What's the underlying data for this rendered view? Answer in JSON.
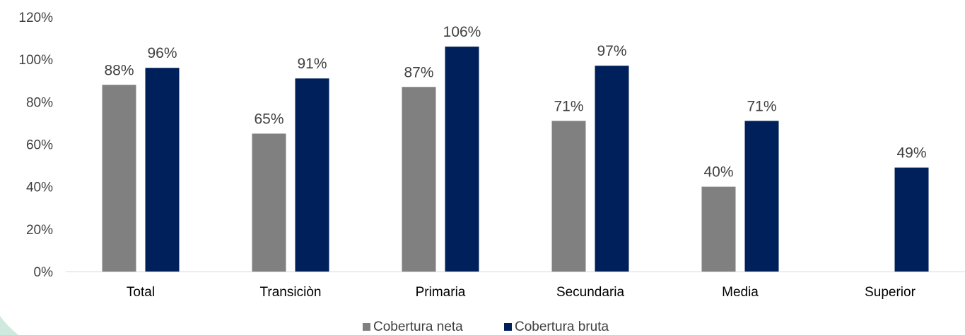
{
  "chart_data": {
    "type": "bar",
    "categories": [
      "Total",
      "Transiciòn",
      "Primaria",
      "Secundaria",
      "Media",
      "Superior"
    ],
    "series": [
      {
        "name": "Cobertura neta",
        "values": [
          88,
          65,
          87,
          71,
          40,
          null
        ],
        "color": "#808080"
      },
      {
        "name": "Cobertura bruta",
        "values": [
          96,
          91,
          106,
          97,
          71,
          49
        ],
        "color": "#00205B"
      }
    ],
    "data_labels": [
      [
        "88%",
        "65%",
        "87%",
        "71%",
        "40%",
        ""
      ],
      [
        "96%",
        "91%",
        "106%",
        "97%",
        "71%",
        "49%"
      ]
    ],
    "y_ticks": [
      "0%",
      "20%",
      "40%",
      "60%",
      "80%",
      "100%",
      "120%"
    ],
    "ylim": [
      0,
      120
    ],
    "grid": false,
    "legend_position": "bottom",
    "axis_color": "#D9D9D9"
  }
}
